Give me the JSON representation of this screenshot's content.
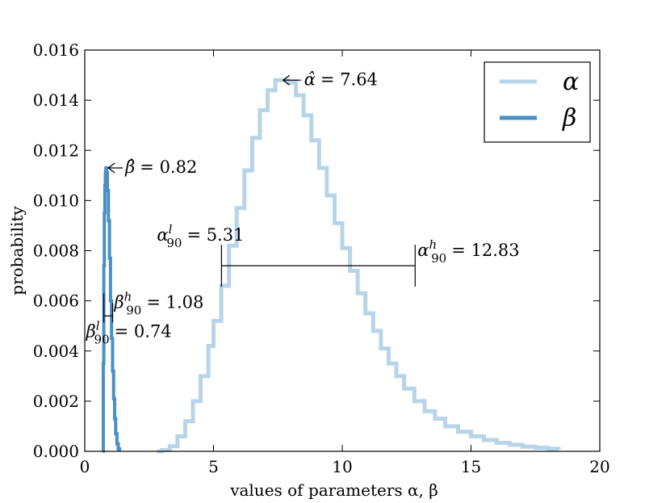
{
  "chart_data": {
    "type": "line",
    "title": "",
    "xlabel": "values of parameters α, β",
    "ylabel": "probability",
    "xlim": [
      0,
      20
    ],
    "ylim": [
      0,
      0.016
    ],
    "xticks": [
      0,
      5,
      10,
      15,
      20
    ],
    "xtick_labels": [
      "0",
      "5",
      "10",
      "15",
      "20"
    ],
    "yticks": [
      0.0,
      0.002,
      0.004,
      0.006,
      0.008,
      0.01,
      0.012,
      0.014,
      0.016
    ],
    "ytick_labels": [
      "0.000",
      "0.002",
      "0.004",
      "0.006",
      "0.008",
      "0.010",
      "0.012",
      "0.014",
      "0.016"
    ],
    "grid": false,
    "legend_position": "top-right",
    "series": [
      {
        "name": "α",
        "color": "#b7d4e8",
        "x": [
          2.8,
          3.0,
          3.3,
          3.6,
          3.9,
          4.2,
          4.5,
          4.8,
          5.0,
          5.3,
          5.6,
          5.9,
          6.2,
          6.5,
          6.8,
          7.1,
          7.4,
          7.64,
          7.9,
          8.2,
          8.5,
          8.8,
          9.1,
          9.4,
          9.7,
          10.0,
          10.3,
          10.6,
          10.9,
          11.2,
          11.5,
          11.8,
          12.1,
          12.4,
          12.8,
          13.2,
          13.6,
          14.0,
          14.5,
          15.0,
          15.5,
          16.0,
          16.5,
          17.0,
          17.5,
          18.0,
          18.4
        ],
        "y": [
          0.0,
          5e-05,
          0.0002,
          0.0006,
          0.0012,
          0.002,
          0.003,
          0.0042,
          0.0052,
          0.0066,
          0.0082,
          0.0097,
          0.0112,
          0.0125,
          0.0136,
          0.0144,
          0.0148,
          0.0148,
          0.0147,
          0.0142,
          0.0134,
          0.0124,
          0.0113,
          0.0102,
          0.0091,
          0.0081,
          0.0072,
          0.0063,
          0.0055,
          0.0048,
          0.0041,
          0.0035,
          0.003,
          0.0025,
          0.002,
          0.0016,
          0.0013,
          0.001,
          0.00078,
          0.0006,
          0.00045,
          0.00034,
          0.00026,
          0.00019,
          0.00014,
          0.0001,
          7e-05
        ]
      },
      {
        "name": "β",
        "color": "#4a90c2",
        "x": [
          0.7,
          0.72,
          0.74,
          0.76,
          0.78,
          0.8,
          0.82,
          0.85,
          0.88,
          0.92,
          0.96,
          1.0,
          1.04,
          1.08,
          1.12,
          1.16,
          1.2,
          1.25,
          1.3,
          1.35
        ],
        "y": [
          0.0,
          0.0035,
          0.0074,
          0.0095,
          0.0106,
          0.0111,
          0.0113,
          0.0111,
          0.0104,
          0.0092,
          0.0077,
          0.006,
          0.0045,
          0.0032,
          0.0021,
          0.0013,
          0.0007,
          0.0003,
          0.0001,
          0.0
        ]
      }
    ],
    "annotations": {
      "alpha_mode": {
        "symbol": "α̂",
        "text": "= 7.64",
        "x": 7.64,
        "y": 0.0148
      },
      "beta_mode": {
        "symbol": "β̂",
        "text": "= 0.82",
        "x": 0.82,
        "y": 0.0113
      },
      "alpha_low": {
        "symbol": "α",
        "sup": "l",
        "sub": "90",
        "text": "= 5.31",
        "value": 5.31
      },
      "alpha_high": {
        "symbol": "α",
        "sup": "h",
        "sub": "90",
        "text": "= 12.83",
        "value": 12.83
      },
      "beta_high": {
        "symbol": "β",
        "sup": "h",
        "sub": "90",
        "text": "= 1.08",
        "value": 1.08
      },
      "beta_low": {
        "symbol": "β",
        "sup": "l",
        "sub": "90",
        "text": "= 0.74",
        "value": 0.74
      }
    }
  }
}
